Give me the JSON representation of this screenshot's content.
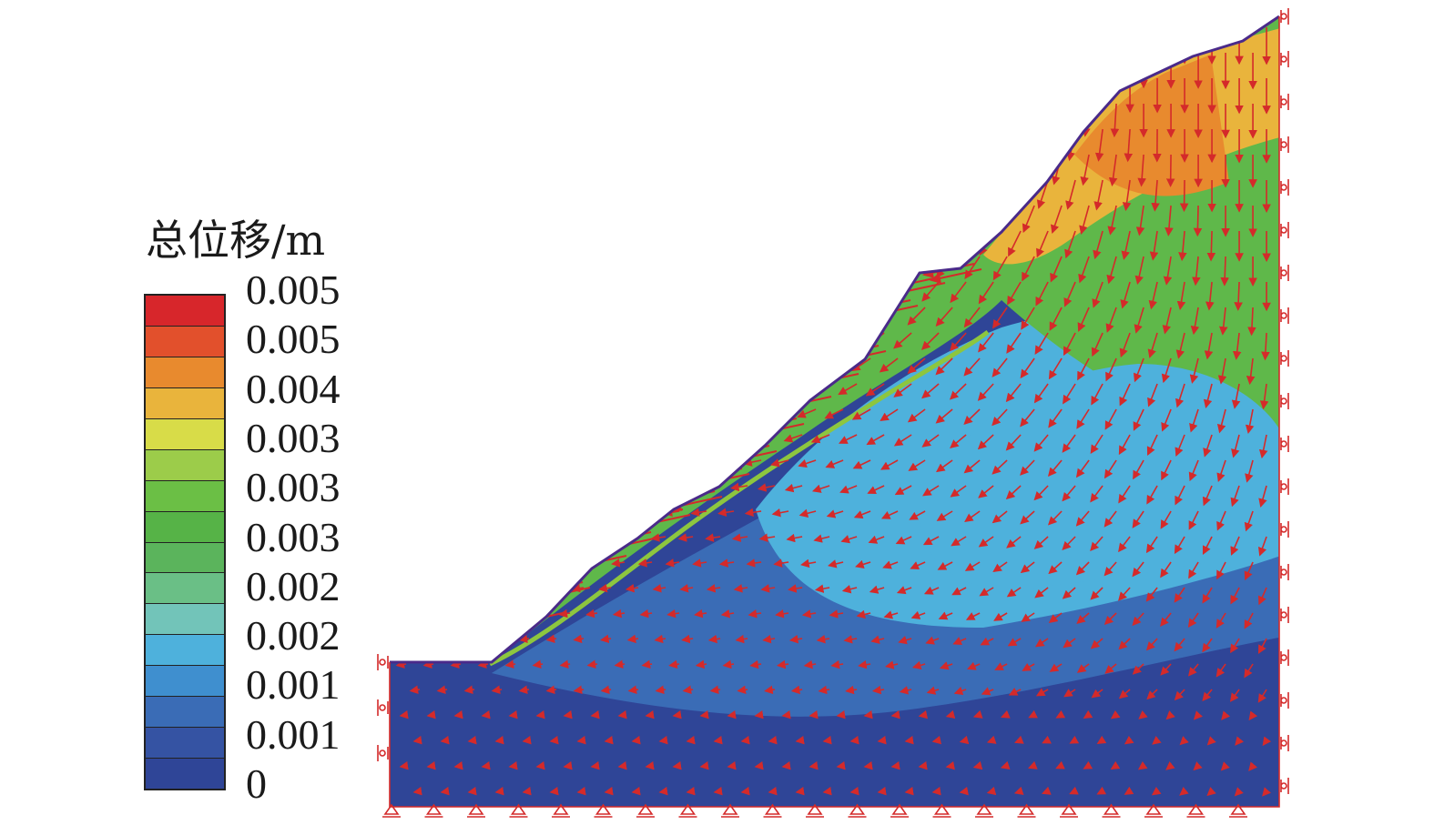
{
  "legend": {
    "title": "总位移/m",
    "labels": [
      "0.005",
      "0.005",
      "0.004",
      "0.003",
      "0.003",
      "0.003",
      "0.002",
      "0.002",
      "0.001",
      "0.001",
      "0"
    ],
    "colors": [
      "#d7262b",
      "#e2502c",
      "#e88a2e",
      "#e9b43c",
      "#d8dc48",
      "#9ccc4a",
      "#6bbf45",
      "#56b347",
      "#5bb45c",
      "#6abf86",
      "#72c4b9",
      "#4eb1dc",
      "#3f8fcf",
      "#3a6cb6",
      "#3553a3",
      "#2f4597"
    ]
  },
  "model_colors": {
    "base": "#2f4597",
    "level_1": "#3a6cb6",
    "level_2": "#4eb1dc",
    "level_3": "#5fb84a",
    "level_4": "#e9b43c",
    "level_5": "#e88a2e",
    "arrows": "#d42a2a",
    "outline": "#4a2a8a",
    "slip_surface": "#8dc63f"
  }
}
